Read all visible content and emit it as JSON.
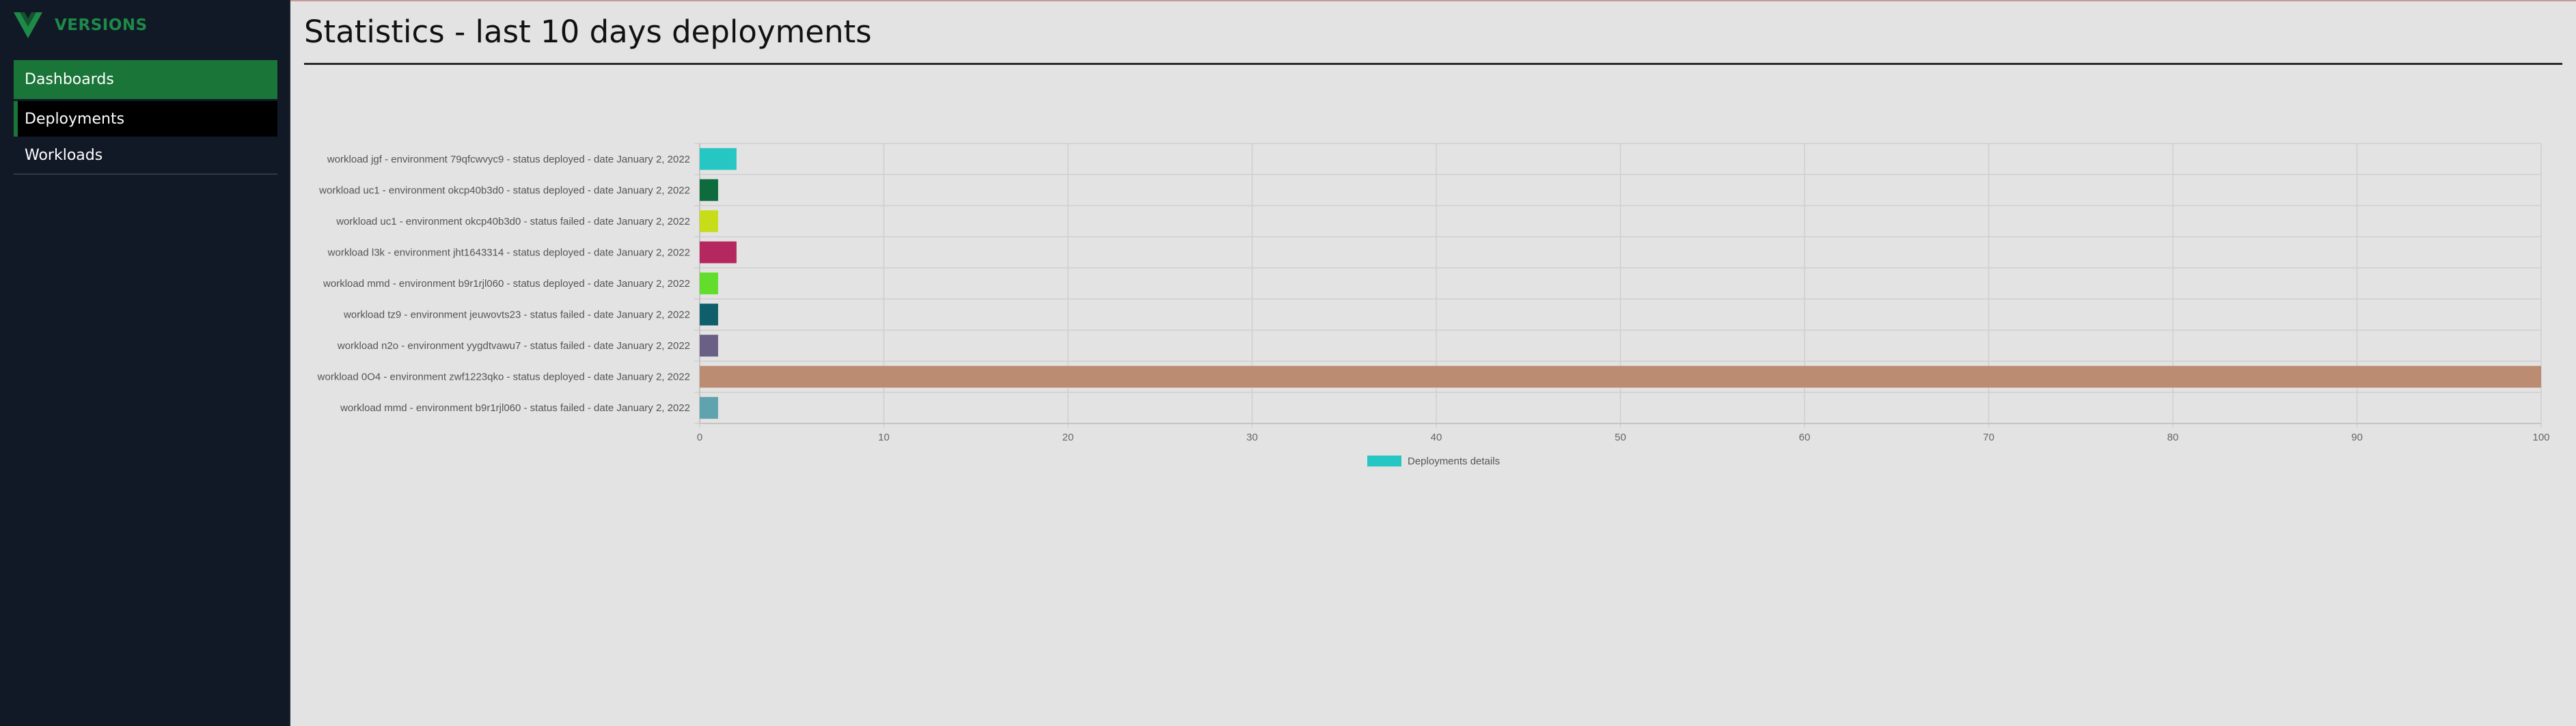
{
  "brand": {
    "name": "VERSIONS",
    "logo": "vue-logo-icon",
    "color": "#1d8a48"
  },
  "sidebar": {
    "items": [
      {
        "label": "Dashboards",
        "state": "active"
      },
      {
        "label": "Deployments",
        "state": "hover"
      },
      {
        "label": "Workloads",
        "state": "normal"
      }
    ]
  },
  "page": {
    "title": "Statistics - last 10 days deployments"
  },
  "chart_data": {
    "type": "bar",
    "orientation": "horizontal",
    "categories": [
      "workload jgf - environment 79qfcwvyc9 - status deployed - date January 2, 2022",
      "workload uc1 - environment okcp40b3d0 - status deployed - date January 2, 2022",
      "workload uc1 - environment okcp40b3d0 - status failed - date January 2, 2022",
      "workload l3k - environment jht1643314 - status deployed - date January 2, 2022",
      "workload mmd - environment b9r1rjl060 - status deployed - date January 2, 2022",
      "workload tz9 - environment jeuwovts23 - status failed - date January 2, 2022",
      "workload n2o - environment yygdtvawu7 - status failed - date January 2, 2022",
      "workload 0O4 - environment zwf1223qko - status deployed - date January 2, 2022",
      "workload mmd - environment b9r1rjl060 - status failed - date January 2, 2022"
    ],
    "values": [
      2,
      1,
      1,
      2,
      1,
      1,
      1,
      100,
      1
    ],
    "colors": [
      "#26c6c3",
      "#0e6b3e",
      "#c8dd1a",
      "#b5285f",
      "#62dd2c",
      "#0f5e6b",
      "#6a5f85",
      "#bb8c72",
      "#5ea3ad"
    ],
    "xlim": [
      0,
      100
    ],
    "xticks": [
      "0",
      "10",
      "20",
      "30",
      "40",
      "50",
      "60",
      "70",
      "80",
      "90",
      "100"
    ],
    "grid": true,
    "legend": {
      "label": "Deployments details",
      "color": "#26c6c3",
      "position": "bottom-center"
    }
  }
}
